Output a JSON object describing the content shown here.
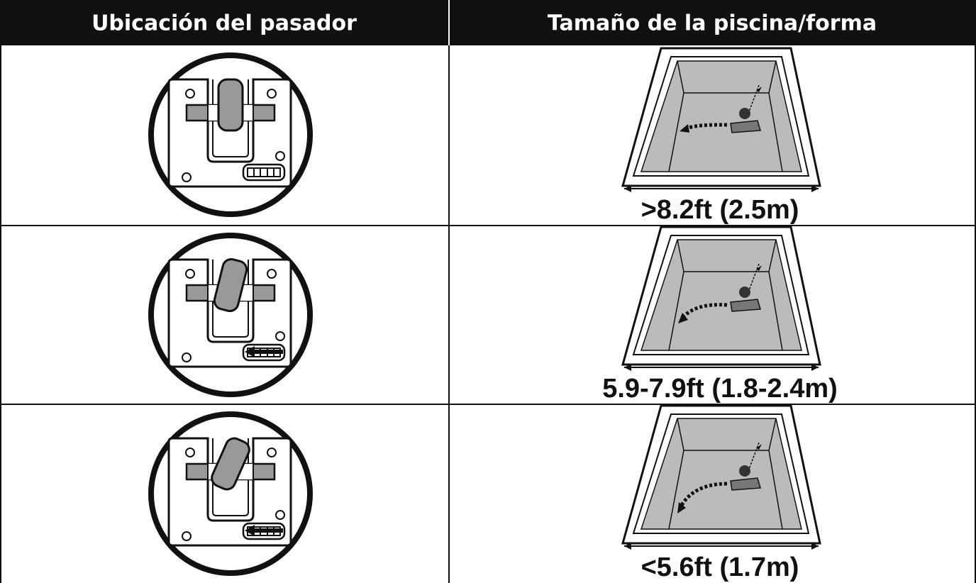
{
  "table": {
    "headers": [
      "Ubicación del pasador",
      "Tamaño de la piscina/forma"
    ],
    "rows": [
      {
        "size": ">8.2ft (2.5m)"
      },
      {
        "size": "5.9-7.9ft (1.8-2.4m)"
      },
      {
        "size": "<5.6ft (1.7m)"
      }
    ]
  }
}
